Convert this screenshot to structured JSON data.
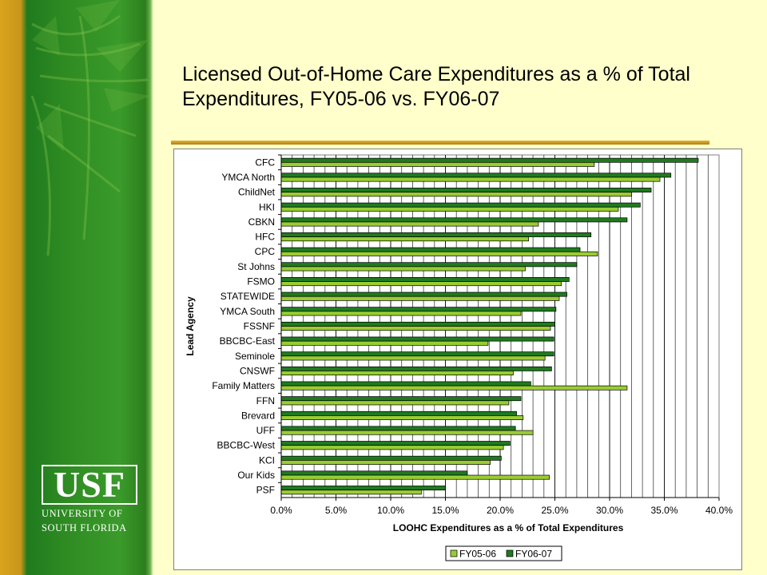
{
  "slide": {
    "title": "Licensed Out-of-Home Care Expenditures as a % of Total Expenditures, FY05-06 vs. FY06-07"
  },
  "logo": {
    "wordmark": "USF",
    "line1": "UNIVERSITY OF",
    "line2": "SOUTH FLORIDA"
  },
  "colors": {
    "fy0506": "#99CC33",
    "fy0607": "#1F7A1F",
    "plot_bg": "#FFFFFF",
    "gridline": "#000000"
  },
  "chart_data": {
    "type": "bar",
    "orientation": "horizontal",
    "title": "",
    "xlabel": "LOOHC Expenditures as a % of Total Expenditures",
    "ylabel": "Lead Agency",
    "xlim": [
      0,
      40
    ],
    "x_ticks": [
      0,
      5,
      10,
      15,
      20,
      25,
      30,
      35,
      40
    ],
    "x_tick_labels": [
      "0.0%",
      "5.0%",
      "10.0%",
      "15.0%",
      "20.0%",
      "25.0%",
      "30.0%",
      "35.0%",
      "40.0%"
    ],
    "grid": "vertical",
    "legend_position": "bottom-right",
    "categories": [
      "CFC",
      "YMCA North",
      "ChildNet",
      "HKI",
      "CBKN",
      "HFC",
      "CPC",
      "St Johns",
      "FSMO",
      "STATEWIDE",
      "YMCA South",
      "FSSNF",
      "BBCBC-East",
      "Seminole",
      "CNSWF",
      "Family Matters",
      "FFN",
      "Brevard",
      "UFF",
      "BBCBC-West",
      "KCI",
      "Our Kids",
      "PSF"
    ],
    "series": [
      {
        "name": "FY05-06",
        "color": "#99CC33",
        "values": [
          28.6,
          34.6,
          32.0,
          30.8,
          23.5,
          22.6,
          28.9,
          22.3,
          25.6,
          25.4,
          21.9,
          24.6,
          18.9,
          24.1,
          21.2,
          31.6,
          20.8,
          22.1,
          23.0,
          20.3,
          19.1,
          24.5,
          12.8
        ]
      },
      {
        "name": "FY06-07",
        "color": "#1F7A1F",
        "values": [
          38.1,
          35.6,
          33.8,
          32.8,
          31.6,
          28.3,
          27.3,
          27.0,
          26.3,
          26.1,
          25.1,
          25.0,
          24.9,
          24.9,
          24.7,
          22.8,
          21.9,
          21.5,
          21.4,
          20.9,
          20.1,
          17.0,
          15.0
        ]
      }
    ]
  }
}
